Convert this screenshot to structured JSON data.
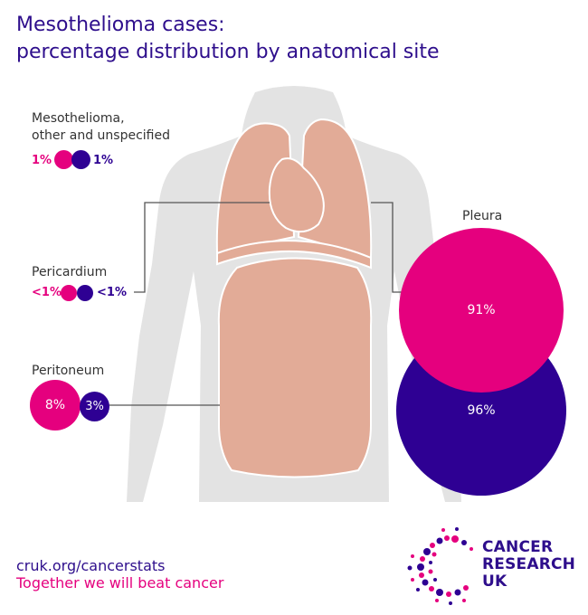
{
  "title": {
    "line1": "Mesothelioma cases:",
    "line2": "percentage distribution by anatomical site"
  },
  "colors": {
    "series_a": "#e5007e",
    "series_b": "#2e0093",
    "body_silhouette": "#e3e3e3",
    "organs": "#e2ab97",
    "title_text": "#2e0e8c"
  },
  "icons": [
    "body-silhouette-icon",
    "lungs-icon",
    "heart-icon",
    "abdomen-icon",
    "cancer-research-uk-logo-icon"
  ],
  "chart_data": {
    "type": "proportional-circles",
    "title": "Mesothelioma cases: percentage distribution by anatomical site",
    "series": [
      {
        "color": "#e5007e",
        "values": {
          "Mesothelioma, other and unspecified": 1,
          "Pericardium": 0.5,
          "Peritoneum": 8,
          "Pleura": 91
        }
      },
      {
        "color": "#2e0093",
        "values": {
          "Mesothelioma, other and unspecified": 1,
          "Pericardium": 0.5,
          "Peritoneum": 3,
          "Pleura": 96
        }
      }
    ],
    "sites": [
      {
        "name_line1": "Mesothelioma,",
        "name_line2": "other and unspecified",
        "label_a": "1%",
        "label_b": "1%"
      },
      {
        "name_line1": "Pericardium",
        "label_a": "<1%",
        "label_b": "<1%"
      },
      {
        "name_line1": "Peritoneum",
        "label_a": "8%",
        "label_b": "3%"
      },
      {
        "name_line1": "Pleura",
        "label_a": "91%",
        "label_b": "96%"
      }
    ]
  },
  "footer": {
    "link": "cruk.org/cancerstats",
    "tagline": "Together we will beat cancer"
  },
  "logo": {
    "line1": "CANCER",
    "line2": "RESEARCH",
    "line3": "UK"
  }
}
